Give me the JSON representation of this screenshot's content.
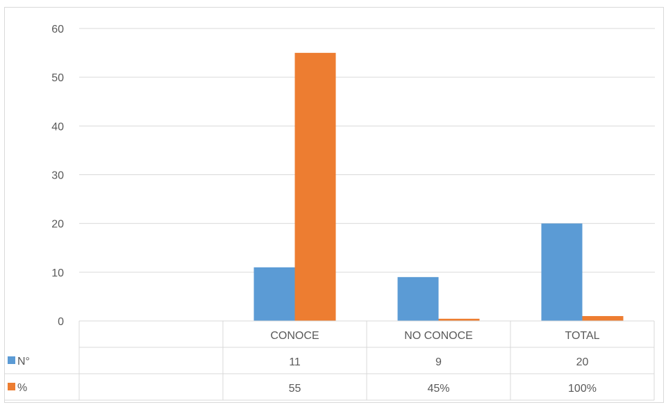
{
  "chart_data": {
    "type": "bar",
    "categories": [
      "CONOCE",
      "NO CONOCE",
      "TOTAL"
    ],
    "series": [
      {
        "name": "N°",
        "color": "#5b9bd5",
        "values": [
          11,
          9,
          20
        ],
        "labels": [
          "11",
          "9",
          "20"
        ]
      },
      {
        "name": "%",
        "color": "#ed7d31",
        "values": [
          55,
          0.45,
          1.0
        ],
        "labels": [
          "55",
          "45%",
          "100%"
        ]
      }
    ],
    "ylim": [
      0,
      60
    ],
    "yticks": [
      0,
      10,
      20,
      30,
      40,
      50,
      60
    ],
    "grid": true,
    "legend": "data-table",
    "data_table": true
  }
}
